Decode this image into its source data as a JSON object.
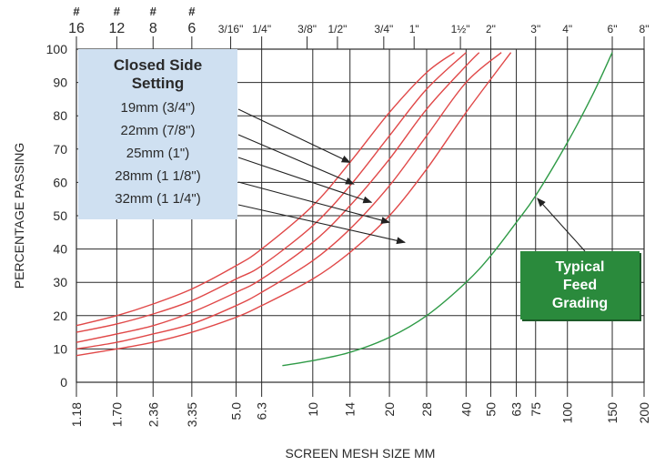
{
  "chart_data": {
    "type": "line",
    "xlabel": "SCREEN MESH SIZE MM",
    "ylabel": "PERCENTAGE PASSING",
    "ylim": [
      0,
      100
    ],
    "y_ticks": [
      0,
      10,
      20,
      30,
      40,
      50,
      60,
      70,
      80,
      90,
      100
    ],
    "x_scale": "log",
    "xlim": [
      1.18,
      200
    ],
    "x_ticks_bottom": [
      {
        "v": 1.18,
        "label": "1.18"
      },
      {
        "v": 1.7,
        "label": "1.70"
      },
      {
        "v": 2.36,
        "label": "2.36"
      },
      {
        "v": 3.35,
        "label": "3.35"
      },
      {
        "v": 5.0,
        "label": "5.0"
      },
      {
        "v": 6.3,
        "label": "6.3"
      },
      {
        "v": 10,
        "label": "10"
      },
      {
        "v": 14,
        "label": "14"
      },
      {
        "v": 20,
        "label": "20"
      },
      {
        "v": 28,
        "label": "28"
      },
      {
        "v": 40,
        "label": "40"
      },
      {
        "v": 50,
        "label": "50"
      },
      {
        "v": 63,
        "label": "63"
      },
      {
        "v": 75,
        "label": "75"
      },
      {
        "v": 100,
        "label": "100"
      },
      {
        "v": 150,
        "label": "150"
      },
      {
        "v": 200,
        "label": "200"
      }
    ],
    "x_ticks_top_mesh": [
      {
        "v": 1.18,
        "mark": "#",
        "label": "16"
      },
      {
        "v": 1.7,
        "mark": "#",
        "label": "12"
      },
      {
        "v": 2.36,
        "mark": "#",
        "label": "8"
      },
      {
        "v": 3.35,
        "mark": "#",
        "label": "6"
      }
    ],
    "x_ticks_top_inch": [
      {
        "v": 4.76,
        "label": "3/16\""
      },
      {
        "v": 6.3,
        "label": "1/4\""
      },
      {
        "v": 9.5,
        "label": "3/8\""
      },
      {
        "v": 12.5,
        "label": "1/2\""
      },
      {
        "v": 19,
        "label": "3/4\""
      },
      {
        "v": 25,
        "label": "1\""
      },
      {
        "v": 38,
        "label": "1½\""
      },
      {
        "v": 50,
        "label": "2\""
      },
      {
        "v": 75,
        "label": "3\""
      },
      {
        "v": 100,
        "label": "4\""
      },
      {
        "v": 150,
        "label": "6\""
      },
      {
        "v": 200,
        "label": "8\""
      }
    ],
    "series": [
      {
        "name": "19mm (3/4\")",
        "color": "#e04848",
        "points": [
          [
            1.18,
            17
          ],
          [
            1.7,
            20
          ],
          [
            2.36,
            23.5
          ],
          [
            3.35,
            28
          ],
          [
            5.0,
            35
          ],
          [
            6.3,
            40
          ],
          [
            10,
            53
          ],
          [
            14,
            66
          ],
          [
            20,
            81
          ],
          [
            28,
            93
          ],
          [
            36,
            99
          ]
        ]
      },
      {
        "name": "22mm (7/8\")",
        "color": "#e04848",
        "points": [
          [
            1.18,
            15
          ],
          [
            1.7,
            17.5
          ],
          [
            2.36,
            20.5
          ],
          [
            3.35,
            24.5
          ],
          [
            5.0,
            31
          ],
          [
            6.3,
            35
          ],
          [
            10,
            47
          ],
          [
            14,
            59
          ],
          [
            20,
            74
          ],
          [
            28,
            88
          ],
          [
            40,
            99
          ]
        ]
      },
      {
        "name": "25mm (1\")",
        "color": "#e04848",
        "points": [
          [
            1.18,
            12
          ],
          [
            1.7,
            14.5
          ],
          [
            2.36,
            17
          ],
          [
            3.35,
            21
          ],
          [
            5.0,
            27
          ],
          [
            6.3,
            31
          ],
          [
            10,
            42
          ],
          [
            14,
            53
          ],
          [
            20,
            67
          ],
          [
            28,
            82
          ],
          [
            40,
            95
          ],
          [
            45,
            99
          ]
        ]
      },
      {
        "name": "28mm (1 1/8\")",
        "color": "#e04848",
        "points": [
          [
            1.18,
            10
          ],
          [
            1.7,
            12
          ],
          [
            2.36,
            14.5
          ],
          [
            3.35,
            17.5
          ],
          [
            5.0,
            23
          ],
          [
            6.3,
            27
          ],
          [
            10,
            36.5
          ],
          [
            14,
            46
          ],
          [
            20,
            59
          ],
          [
            28,
            74
          ],
          [
            40,
            90
          ],
          [
            55,
            99
          ]
        ]
      },
      {
        "name": "32mm (1 1/4\")",
        "color": "#e04848",
        "points": [
          [
            1.18,
            8
          ],
          [
            1.7,
            10
          ],
          [
            2.36,
            12
          ],
          [
            3.35,
            15
          ],
          [
            5.0,
            19.5
          ],
          [
            6.3,
            23
          ],
          [
            10,
            31
          ],
          [
            14,
            39
          ],
          [
            20,
            50
          ],
          [
            28,
            64
          ],
          [
            40,
            81
          ],
          [
            60,
            99
          ]
        ]
      },
      {
        "name": "Typical Feed Grading",
        "color": "#2e9a46",
        "points": [
          [
            7.6,
            5
          ],
          [
            10,
            6.5
          ],
          [
            14,
            9
          ],
          [
            20,
            13.5
          ],
          [
            28,
            20
          ],
          [
            40,
            30
          ],
          [
            50,
            38
          ],
          [
            63,
            48
          ],
          [
            75,
            56
          ],
          [
            100,
            72
          ],
          [
            125,
            86
          ],
          [
            150,
            99
          ]
        ]
      }
    ],
    "legend_title_line1": "Closed Side",
    "legend_title_line2": "Setting",
    "legend_items": [
      {
        "text": "19mm (3/4\")",
        "target_x": 14,
        "target_y": 66
      },
      {
        "text": "22mm (7/8\")",
        "target_x": 14.5,
        "target_y": 59.5
      },
      {
        "text": "25mm (1\")",
        "target_x": 17,
        "target_y": 54
      },
      {
        "text": "28mm (1 1/8\")",
        "target_x": 20,
        "target_y": 48
      },
      {
        "text": "32mm (1 1/4\")",
        "target_x": 23,
        "target_y": 42
      }
    ],
    "feed_label": [
      "Typical",
      "Feed",
      "Grading"
    ],
    "feed_target": {
      "x": 75,
      "y": 56
    },
    "grid": true
  },
  "colors": {
    "grid": "#2a2a2a",
    "curves": "#e04848",
    "feed_curve": "#2e9a46",
    "legend_bg": "#cfe0f1",
    "feed_bg": "#2a8a3c"
  }
}
